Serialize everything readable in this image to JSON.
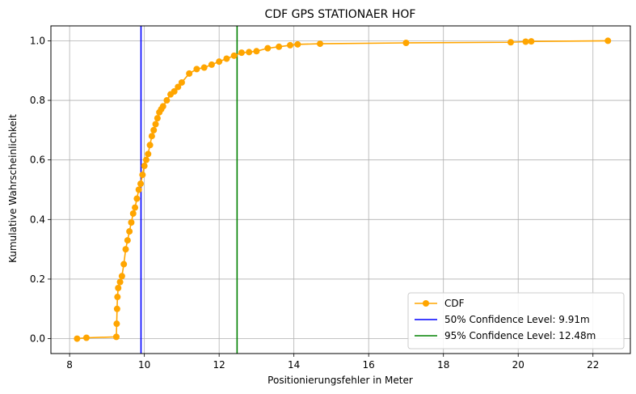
{
  "chart_data": {
    "type": "line",
    "title": "CDF GPS STATIONAER HOF",
    "xlabel": "Positionierungsfehler in Meter",
    "ylabel": "Kumulative Wahrscheinlichkeit",
    "xlim": [
      7.5,
      23.0
    ],
    "ylim": [
      -0.05,
      1.05
    ],
    "xticks": [
      8,
      10,
      12,
      14,
      16,
      18,
      20,
      22
    ],
    "xtick_labels": [
      "8",
      "10",
      "12",
      "14",
      "16",
      "18",
      "20",
      "22"
    ],
    "yticks": [
      0.0,
      0.2,
      0.4,
      0.6,
      0.8,
      1.0
    ],
    "ytick_labels": [
      "0.0",
      "0.2",
      "0.4",
      "0.6",
      "0.8",
      "1.0"
    ],
    "grid": true,
    "legend_position": "lower-right",
    "series": [
      {
        "name": "CDF",
        "color": "#FFA500",
        "marker": "circle",
        "x": [
          8.2,
          8.45,
          9.25,
          9.26,
          9.27,
          9.28,
          9.3,
          9.35,
          9.4,
          9.45,
          9.5,
          9.55,
          9.6,
          9.65,
          9.7,
          9.75,
          9.8,
          9.85,
          9.9,
          9.95,
          10.0,
          10.05,
          10.1,
          10.15,
          10.2,
          10.25,
          10.3,
          10.35,
          10.4,
          10.45,
          10.5,
          10.6,
          10.7,
          10.8,
          10.9,
          11.0,
          11.2,
          11.4,
          11.6,
          11.8,
          12.0,
          12.2,
          12.4,
          12.6,
          12.8,
          13.0,
          13.3,
          13.6,
          13.9,
          14.1,
          14.7,
          17.0,
          19.8,
          20.2,
          20.35,
          22.4
        ],
        "y": [
          0.0,
          0.003,
          0.006,
          0.05,
          0.1,
          0.14,
          0.17,
          0.19,
          0.21,
          0.25,
          0.3,
          0.33,
          0.36,
          0.39,
          0.42,
          0.44,
          0.47,
          0.5,
          0.52,
          0.55,
          0.58,
          0.6,
          0.62,
          0.65,
          0.68,
          0.7,
          0.72,
          0.74,
          0.76,
          0.77,
          0.78,
          0.8,
          0.82,
          0.83,
          0.845,
          0.86,
          0.89,
          0.905,
          0.91,
          0.92,
          0.93,
          0.94,
          0.95,
          0.96,
          0.962,
          0.965,
          0.975,
          0.98,
          0.985,
          0.988,
          0.99,
          0.993,
          0.995,
          0.997,
          0.998,
          1.0
        ]
      }
    ],
    "reference_lines": [
      {
        "name": "50% Confidence Level: 9.91m",
        "x": 9.91,
        "color": "#0000FF"
      },
      {
        "name": "95% Confidence Level: 12.48m",
        "x": 12.48,
        "color": "#008000"
      }
    ]
  }
}
